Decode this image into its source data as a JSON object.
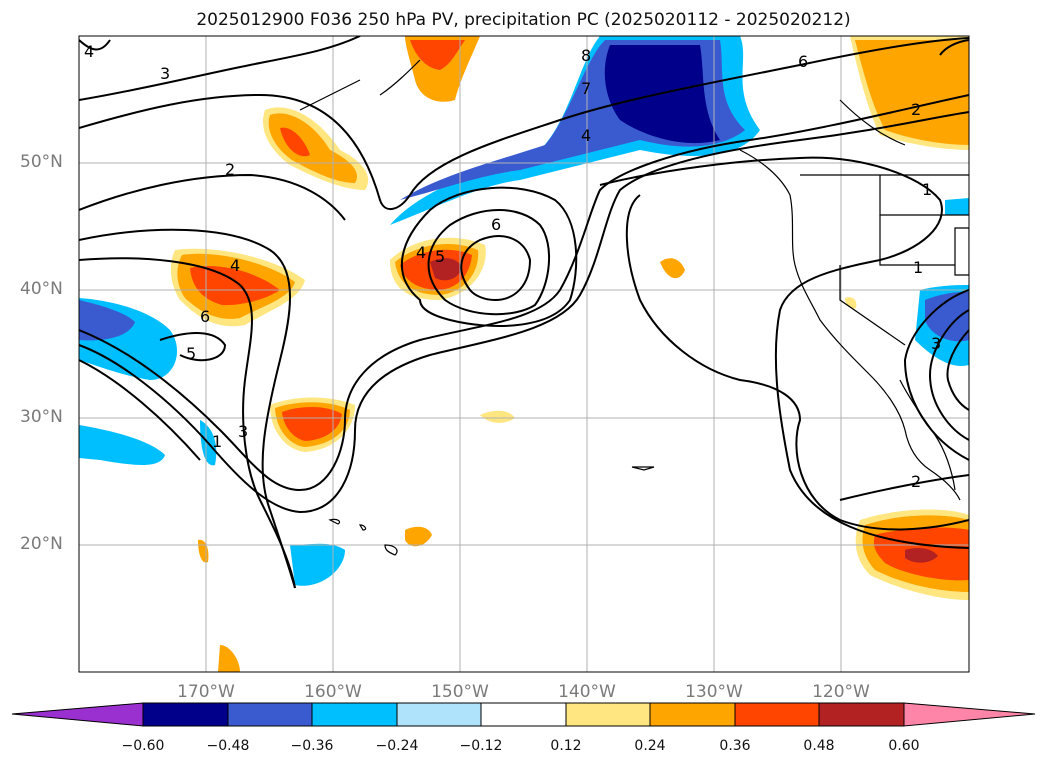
{
  "title": "2025012900 F036 250 hPa PV, precipitation PC (2025020112 - 2025020212)",
  "lat_labels": [
    "50°N",
    "40°N",
    "30°N",
    "20°N"
  ],
  "lon_labels": [
    "170°W",
    "160°W",
    "150°W",
    "140°W",
    "130°W",
    "120°W"
  ],
  "colorbar": {
    "ticks": [
      "−0.60",
      "−0.48",
      "−0.36",
      "−0.24",
      "−0.12",
      "0.12",
      "0.24",
      "0.36",
      "0.48",
      "0.60"
    ],
    "colors": [
      "#9b30d0",
      "#00008b",
      "#3a5bd0",
      "#00bfff",
      "#aee3fb",
      "#ffffff",
      "#ffe680",
      "#ffa500",
      "#ff4500",
      "#b22222",
      "#ff85a8"
    ]
  },
  "contour_labels": [
    "4",
    "3",
    "2",
    "8",
    "7",
    "4",
    "6",
    "2",
    "1",
    "6",
    "4",
    "5",
    "4",
    "6",
    "5",
    "3",
    "1",
    "2",
    "3",
    "1"
  ],
  "colors": {
    "grid": "#b0b0b0",
    "contour": "#000000",
    "coast": "#000000"
  }
}
